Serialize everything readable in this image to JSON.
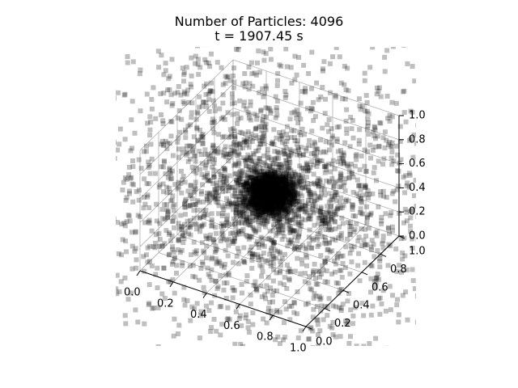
{
  "chart_data": {
    "type": "scatter",
    "projection": "3d",
    "title_lines": [
      "Number of Particles: 4096",
      "t = 1907.45 s"
    ],
    "particle_count": 4096,
    "time_s": 1907.45,
    "marker": "square",
    "marker_color": "#000000",
    "marker_alpha": 0.25,
    "grid": true,
    "xlim": [
      0,
      1
    ],
    "ylim": [
      0,
      1
    ],
    "zlim": [
      0,
      1
    ],
    "x_ticks": [
      "0.0",
      "0.2",
      "0.4",
      "0.6",
      "0.8",
      "1.0"
    ],
    "y_ticks": [
      "0.0",
      "0.2",
      "0.4",
      "0.6",
      "0.8",
      "1.0"
    ],
    "z_ticks": [
      "0.0",
      "0.2",
      "0.4",
      "0.6",
      "0.8",
      "1.0"
    ],
    "distribution": {
      "background": "uniform",
      "cluster_center": [
        0.5,
        0.5,
        0.5
      ],
      "cluster_core_radius": 0.12,
      "cluster_fraction": 0.55
    }
  }
}
